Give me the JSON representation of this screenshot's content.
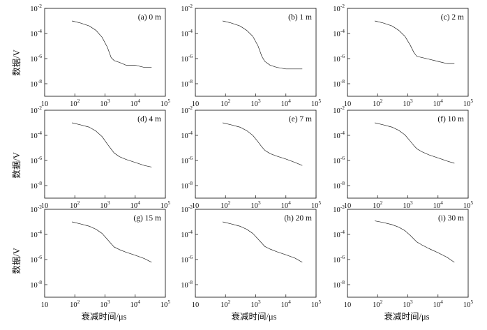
{
  "figure": {
    "ylabel": "数据/V",
    "xlabel": "衰减时间/μs"
  },
  "chart_data": [
    {
      "type": "line",
      "label": "(a) 0 m",
      "xscale": "log",
      "yscale": "log",
      "xlim": [
        10,
        100000
      ],
      "ylim": [
        1e-09,
        0.01
      ],
      "x_ticks": [
        "10",
        "10^2",
        "10^3",
        "10^4",
        "10^5"
      ],
      "y_ticks": [
        "10^-2",
        "10^-4",
        "10^-6",
        "10^-8"
      ],
      "series": [
        {
          "x": [
            80,
            150,
            300,
            500,
            800,
            1200,
            1600,
            2000,
            3000,
            5000,
            10000,
            20000,
            35000
          ],
          "y": [
            0.001,
            0.0007,
            0.0004,
            0.00018,
            5e-05,
            8e-06,
            1.2e-06,
            7e-07,
            5e-07,
            3e-07,
            3e-07,
            2e-07,
            2e-07
          ]
        }
      ]
    },
    {
      "type": "line",
      "label": "(b) 1 m",
      "xscale": "log",
      "yscale": "log",
      "xlim": [
        10,
        100000
      ],
      "ylim": [
        1e-09,
        0.01
      ],
      "x_ticks": [
        "10",
        "10^2",
        "10^3",
        "10^4",
        "10^5"
      ],
      "y_ticks": [
        "10^-2",
        "10^-4",
        "10^-6",
        "10^-8"
      ],
      "series": [
        {
          "x": [
            80,
            150,
            300,
            500,
            800,
            1200,
            1600,
            2000,
            3000,
            5000,
            10000,
            20000,
            35000
          ],
          "y": [
            0.001,
            0.0007,
            0.0004,
            0.00018,
            6e-05,
            1e-05,
            1.5e-06,
            6e-07,
            3e-07,
            2e-07,
            1.5e-07,
            1.5e-07,
            1.5e-07
          ]
        }
      ]
    },
    {
      "type": "line",
      "label": "(c) 2 m",
      "xscale": "log",
      "yscale": "log",
      "xlim": [
        10,
        100000
      ],
      "ylim": [
        1e-09,
        0.01
      ],
      "x_ticks": [
        "10",
        "10^2",
        "10^3",
        "10^4",
        "10^5"
      ],
      "y_ticks": [
        "10^-2",
        "10^-4",
        "10^-6",
        "10^-8"
      ],
      "series": [
        {
          "x": [
            80,
            150,
            300,
            500,
            800,
            1200,
            1600,
            2000,
            3000,
            5000,
            10000,
            20000,
            35000
          ],
          "y": [
            0.001,
            0.0007,
            0.0004,
            0.00018,
            6e-05,
            1.2e-05,
            3e-06,
            1.5e-06,
            1.2e-06,
            9e-07,
            6e-07,
            4e-07,
            4e-07
          ]
        }
      ]
    },
    {
      "type": "line",
      "label": "(d) 4 m",
      "xscale": "log",
      "yscale": "log",
      "xlim": [
        10,
        100000
      ],
      "ylim": [
        1e-09,
        0.01
      ],
      "x_ticks": [
        "10",
        "10^2",
        "10^3",
        "10^4",
        "10^5"
      ],
      "y_ticks": [
        "10^-2",
        "10^-4",
        "10^-6",
        "10^-8"
      ],
      "series": [
        {
          "x": [
            80,
            150,
            300,
            500,
            800,
            1200,
            1600,
            2000,
            3000,
            5000,
            10000,
            20000,
            35000
          ],
          "y": [
            0.001,
            0.0007,
            0.00045,
            0.00022,
            8e-05,
            2e-05,
            8e-06,
            4e-06,
            2e-06,
            1.2e-06,
            7e-07,
            4e-07,
            3e-07
          ]
        }
      ]
    },
    {
      "type": "line",
      "label": "(e) 7 m",
      "xscale": "log",
      "yscale": "log",
      "xlim": [
        10,
        100000
      ],
      "ylim": [
        1e-09,
        0.01
      ],
      "x_ticks": [
        "10",
        "10^2",
        "10^3",
        "10^4",
        "10^5"
      ],
      "y_ticks": [
        "10^-2",
        "10^-4",
        "10^-6",
        "10^-8"
      ],
      "series": [
        {
          "x": [
            80,
            150,
            300,
            500,
            800,
            1200,
            1600,
            2000,
            3000,
            5000,
            10000,
            20000,
            35000
          ],
          "y": [
            0.001,
            0.0007,
            0.00045,
            0.00024,
            0.0001,
            3e-05,
            1.2e-05,
            6.5e-06,
            3.5e-06,
            2.2e-06,
            1.3e-06,
            7e-07,
            4e-07
          ]
        }
      ]
    },
    {
      "type": "line",
      "label": "(f) 10 m",
      "xscale": "log",
      "yscale": "log",
      "xlim": [
        10,
        100000
      ],
      "ylim": [
        1e-09,
        0.01
      ],
      "x_ticks": [
        "10",
        "10^2",
        "10^3",
        "10^4",
        "10^5"
      ],
      "y_ticks": [
        "10^-2",
        "10^-4",
        "10^-6",
        "10^-8"
      ],
      "series": [
        {
          "x": [
            80,
            150,
            300,
            500,
            800,
            1200,
            1600,
            2000,
            3000,
            5000,
            10000,
            20000,
            35000
          ],
          "y": [
            0.001,
            0.0007,
            0.00045,
            0.00025,
            0.00011,
            3.5e-05,
            1.5e-05,
            8.5e-06,
            4.8e-06,
            2.8e-06,
            1.6e-06,
            9e-07,
            6e-07
          ]
        }
      ]
    },
    {
      "type": "line",
      "label": "(g) 15 m",
      "xscale": "log",
      "yscale": "log",
      "xlim": [
        10,
        100000
      ],
      "ylim": [
        1e-09,
        0.01
      ],
      "x_ticks": [
        "10",
        "10^2",
        "10^3",
        "10^4",
        "10^5"
      ],
      "y_ticks": [
        "10^-2",
        "10^-4",
        "10^-6",
        "10^-8"
      ],
      "series": [
        {
          "x": [
            80,
            150,
            300,
            500,
            800,
            1200,
            1600,
            2000,
            3000,
            5000,
            10000,
            20000,
            35000
          ],
          "y": [
            0.001,
            0.0007,
            0.00045,
            0.00026,
            0.00012,
            4e-05,
            1.8e-05,
            1e-05,
            6.2e-06,
            3.8e-06,
            2.2e-06,
            1.2e-06,
            6e-07
          ]
        }
      ]
    },
    {
      "type": "line",
      "label": "(h) 20 m",
      "xscale": "log",
      "yscale": "log",
      "xlim": [
        10,
        100000
      ],
      "ylim": [
        1e-09,
        0.01
      ],
      "x_ticks": [
        "10",
        "10^2",
        "10^3",
        "10^4",
        "10^5"
      ],
      "y_ticks": [
        "10^-2",
        "10^-4",
        "10^-6",
        "10^-8"
      ],
      "series": [
        {
          "x": [
            80,
            150,
            300,
            500,
            800,
            1200,
            1600,
            2000,
            3000,
            5000,
            10000,
            20000,
            35000
          ],
          "y": [
            0.001,
            0.0007,
            0.00045,
            0.00026,
            0.00012,
            4.2e-05,
            2e-05,
            1.1e-05,
            6.8e-06,
            4.2e-06,
            2.4e-06,
            1.3e-06,
            6e-07
          ]
        }
      ]
    },
    {
      "type": "line",
      "label": "(i) 30 m",
      "xscale": "log",
      "yscale": "log",
      "xlim": [
        10,
        100000
      ],
      "ylim": [
        1e-09,
        0.01
      ],
      "x_ticks": [
        "10",
        "10^2",
        "10^3",
        "10^4",
        "10^5"
      ],
      "y_ticks": [
        "10^-2",
        "10^-4",
        "10^-6",
        "10^-8"
      ],
      "series": [
        {
          "x": [
            80,
            150,
            300,
            500,
            800,
            1200,
            1600,
            2000,
            3000,
            5000,
            10000,
            20000,
            35000
          ],
          "y": [
            0.0012,
            0.0009,
            0.0006,
            0.00038,
            0.0002,
            8.5e-05,
            4.2e-05,
            2.5e-05,
            1.4e-05,
            7.5e-06,
            3.5e-06,
            1.5e-06,
            6e-07
          ]
        }
      ]
    }
  ]
}
